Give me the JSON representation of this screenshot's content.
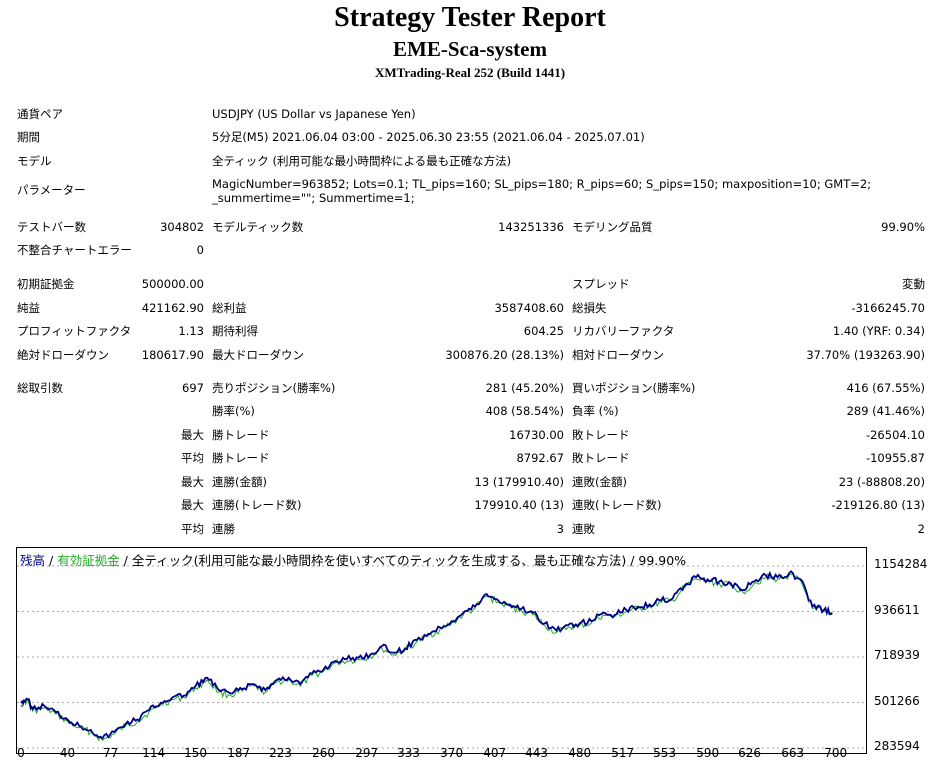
{
  "header": {
    "title": "Strategy Tester Report",
    "subtitle": "EME-Sca-system",
    "server": "XMTrading-Real 252 (Build 1441)"
  },
  "info": [
    {
      "label": "通貨ペア",
      "value": "USDJPY (US Dollar vs Japanese Yen)"
    },
    {
      "label": "期間",
      "value": "5分足(M5) 2021.06.04 03:00 - 2025.06.30 23:55 (2021.06.04 - 2025.07.01)"
    },
    {
      "label": "モデル",
      "value": "全ティック (利用可能な最小時間枠による最も正確な方法)"
    },
    {
      "label": "パラメーター",
      "value": "MagicNumber=963852; Lots=0.1; TL_pips=160; SL_pips=180; R_pips=60; S_pips=150; maxposition=10; GMT=2; _summertime=\"\"; Summertime=1;"
    }
  ],
  "stats": {
    "bars_label": "テストバー数",
    "bars": "304802",
    "ticks_label": "モデルティック数",
    "ticks": "143251336",
    "quality_label": "モデリング品質",
    "quality": "99.90%",
    "mismatch_label": "不整合チャートエラー",
    "mismatch": "0",
    "deposit_label": "初期証拠金",
    "deposit": "500000.00",
    "spread_label": "スプレッド",
    "spread": "変動",
    "net_label": "純益",
    "net": "421162.90",
    "gross_profit_label": "総利益",
    "gross_profit": "3587408.60",
    "gross_loss_label": "総損失",
    "gross_loss": "-3166245.70",
    "pf_label": "プロフィットファクタ",
    "pf": "1.13",
    "expected_label": "期待利得",
    "expected": "604.25",
    "recovery_label": "リカバリーファクタ",
    "recovery": "1.40 (YRF: 0.34)",
    "abs_dd_label": "絶対ドローダウン",
    "abs_dd": "180617.90",
    "max_dd_label": "最大ドローダウン",
    "max_dd": "300876.20 (28.13%)",
    "rel_dd_label": "相対ドローダウン",
    "rel_dd": "37.70% (193263.90)",
    "trades_label": "総取引数",
    "trades": "697",
    "short_label": "売りポジション(勝率%)",
    "short": "281 (45.20%)",
    "long_label": "買いポジション(勝率%)",
    "long": "416 (67.55%)",
    "winrate_label": "勝率(%)",
    "winrate": "408 (58.54%)",
    "lossrate_label": "負率 (%)",
    "lossrate": "289 (41.46%)",
    "max_label": "最大",
    "avg_label": "平均",
    "win_trade_label": "勝トレード",
    "loss_trade_label": "敗トレード",
    "max_win_trade": "16730.00",
    "max_loss_trade": "-26504.10",
    "avg_win_trade": "8792.67",
    "avg_loss_trade": "-10955.87",
    "consec_win_amt_label": "連勝(金額)",
    "consec_win_amt": "13 (179910.40)",
    "consec_loss_amt_label": "連敗(金額)",
    "consec_loss_amt": "23 (-88808.20)",
    "consec_win_trd_label": "連勝(トレード数)",
    "consec_win_trd": "179910.40 (13)",
    "consec_loss_trd_label": "連敗(トレード数)",
    "consec_loss_trd": "-219126.80 (13)",
    "avg_consec_win_label": "連勝",
    "avg_consec_win": "3",
    "avg_consec_loss_label": "連敗",
    "avg_consec_loss": "2"
  },
  "chart_legend": {
    "balance": "残高",
    "sep1": " / ",
    "equity": "有効証拠金",
    "rest": " / 全ティック(利用可能な最小時間枠を使いすべてのティックを生成する、最も正確な方法) / 99.90%"
  },
  "colors": {
    "balance": "#00008b",
    "equity": "#22aa22",
    "grid": "#aaaaaa"
  },
  "chart_data": {
    "type": "line",
    "ylim": [
      283594,
      1154284
    ],
    "xlim": [
      0,
      720
    ],
    "yticks": [
      "1154284",
      "936611",
      "718939",
      "501266",
      "283594"
    ],
    "xticks": [
      "0",
      "40",
      "77",
      "114",
      "150",
      "187",
      "223",
      "260",
      "297",
      "333",
      "370",
      "407",
      "443",
      "480",
      "517",
      "553",
      "590",
      "626",
      "663",
      "700"
    ],
    "series": [
      {
        "name": "残高",
        "x": [
          0,
          5,
          10,
          20,
          30,
          40,
          50,
          60,
          70,
          80,
          90,
          100,
          110,
          120,
          130,
          140,
          150,
          160,
          170,
          180,
          190,
          200,
          210,
          220,
          230,
          240,
          250,
          260,
          270,
          280,
          290,
          300,
          310,
          320,
          330,
          340,
          350,
          360,
          370,
          380,
          390,
          400,
          410,
          420,
          430,
          440,
          450,
          460,
          470,
          480,
          490,
          500,
          510,
          520,
          530,
          540,
          550,
          560,
          570,
          580,
          590,
          600,
          610,
          620,
          630,
          640,
          650,
          660,
          670,
          680,
          690,
          697
        ],
        "y": [
          500000,
          520000,
          470000,
          485000,
          455000,
          420000,
          390000,
          370000,
          330000,
          360000,
          400000,
          420000,
          465000,
          500000,
          525000,
          535000,
          580000,
          620000,
          560000,
          545000,
          565000,
          590000,
          560000,
          610000,
          620000,
          590000,
          640000,
          660000,
          700000,
          710000,
          715000,
          730000,
          770000,
          740000,
          760000,
          800000,
          830000,
          860000,
          890000,
          930000,
          960000,
          1020000,
          990000,
          970000,
          950000,
          930000,
          880000,
          845000,
          870000,
          880000,
          890000,
          930000,
          920000,
          945000,
          960000,
          970000,
          990000,
          1000000,
          1060000,
          1100000,
          1090000,
          1080000,
          1070000,
          1040000,
          1080000,
          1110000,
          1100000,
          1120000,
          1090000,
          960000,
          945000,
          930000
        ]
      }
    ]
  }
}
